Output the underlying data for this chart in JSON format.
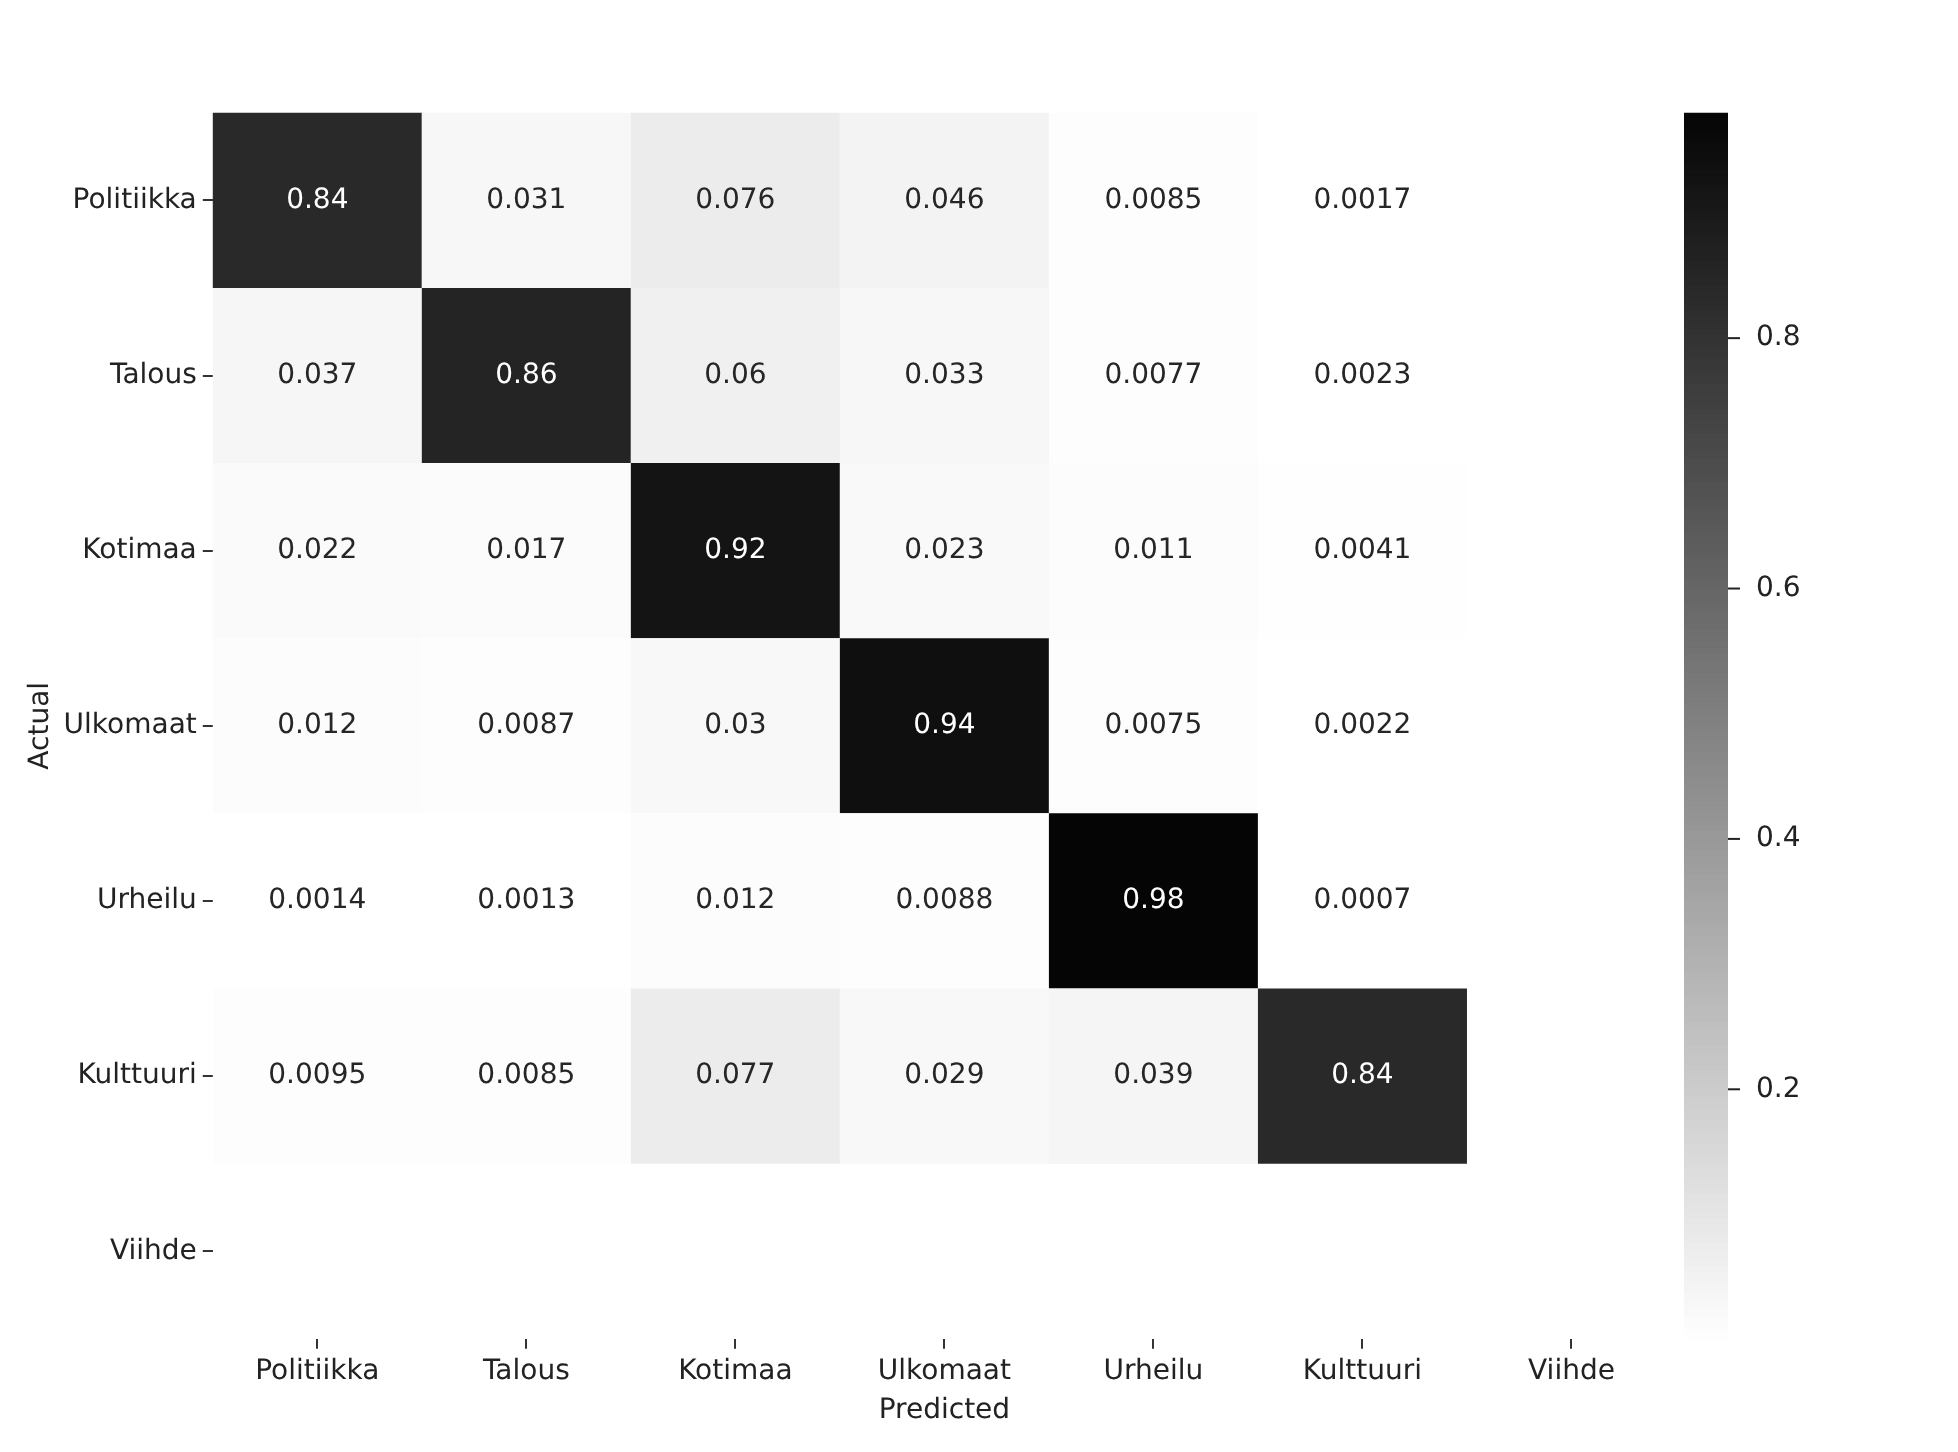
{
  "chart_data": {
    "type": "heatmap",
    "xlabel": "Predicted",
    "ylabel": "Actual",
    "categories": [
      "Politiikka",
      "Talous",
      "Kotimaa",
      "Ulkomaat",
      "Urheilu",
      "Kulttuuri",
      "Viihde"
    ],
    "y_categories": [
      "Politiikka",
      "Talous",
      "Kotimaa",
      "Ulkomaat",
      "Urheilu",
      "Kulttuuri",
      "Viihde"
    ],
    "cells": [
      [
        0.84,
        0.031,
        0.076,
        0.046,
        0.0085,
        0.0017,
        null
      ],
      [
        0.037,
        0.86,
        0.06,
        0.033,
        0.0077,
        0.0023,
        null
      ],
      [
        0.022,
        0.017,
        0.92,
        0.023,
        0.011,
        0.0041,
        null
      ],
      [
        0.012,
        0.0087,
        0.03,
        0.94,
        0.0075,
        0.0022,
        null
      ],
      [
        0.0014,
        0.0013,
        0.012,
        0.0088,
        0.98,
        0.0007,
        null
      ],
      [
        0.0095,
        0.0085,
        0.077,
        0.029,
        0.039,
        0.84,
        null
      ],
      [
        null,
        null,
        null,
        null,
        null,
        null,
        null
      ]
    ],
    "clim": [
      0.0007,
      0.98
    ],
    "cticks": [
      0.2,
      0.4,
      0.6,
      0.8
    ],
    "data_labels": true
  }
}
